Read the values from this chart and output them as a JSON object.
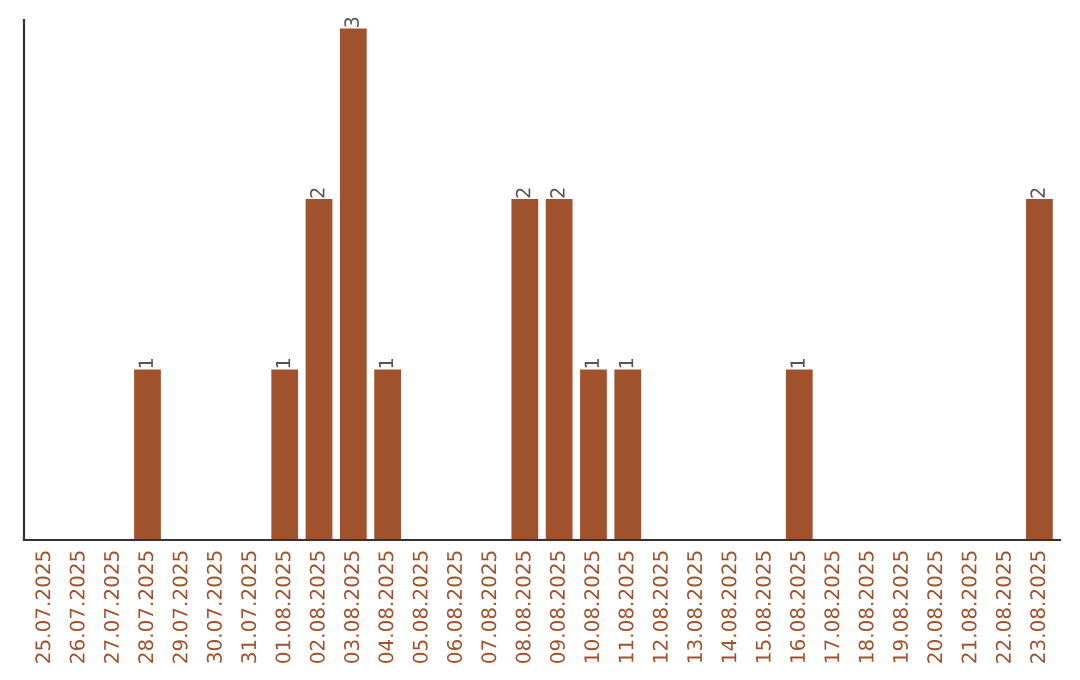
{
  "chart_data": {
    "type": "bar",
    "categories": [
      "25.07.2025",
      "26.07.2025",
      "27.07.2025",
      "28.07.2025",
      "29.07.2025",
      "30.07.2025",
      "31.07.2025",
      "01.08.2025",
      "02.08.2025",
      "03.08.2025",
      "04.08.2025",
      "05.08.2025",
      "06.08.2025",
      "07.08.2025",
      "08.08.2025",
      "09.08.2025",
      "10.08.2025",
      "11.08.2025",
      "12.08.2025",
      "13.08.2025",
      "14.08.2025",
      "15.08.2025",
      "16.08.2025",
      "17.08.2025",
      "18.08.2025",
      "19.08.2025",
      "20.08.2025",
      "21.08.2025",
      "22.08.2025",
      "23.08.2025"
    ],
    "values": [
      0,
      0,
      0,
      1,
      0,
      0,
      0,
      1,
      2,
      3,
      1,
      0,
      0,
      0,
      2,
      2,
      1,
      1,
      0,
      0,
      0,
      0,
      1,
      0,
      0,
      0,
      0,
      0,
      0,
      2
    ],
    "value_labels": [
      null,
      null,
      null,
      "1",
      null,
      null,
      null,
      "1",
      "2",
      "3",
      "1",
      null,
      null,
      null,
      "2",
      "2",
      "1",
      "1",
      null,
      null,
      null,
      null,
      "1",
      null,
      null,
      null,
      null,
      null,
      null,
      "2"
    ],
    "color": "#a0522d",
    "ylim": [
      0,
      3.05
    ],
    "tick_labels": "x",
    "grid": false
  }
}
